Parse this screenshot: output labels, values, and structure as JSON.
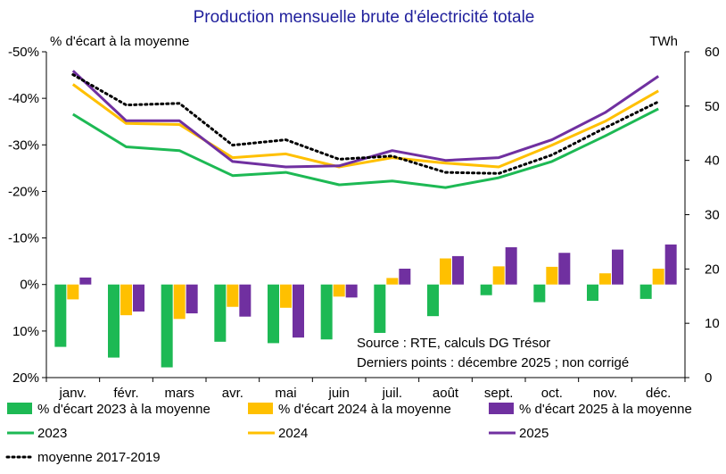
{
  "chart_data": {
    "type": "bar+line",
    "title": "Production mensuelle brute d'électricité totale",
    "ylabel_left": "% d'écart à la moyenne",
    "ylabel_right": "TWh",
    "categories": [
      "janv.",
      "févr.",
      "mars",
      "avr.",
      "mai",
      "juin",
      "juil.",
      "août",
      "sept.",
      "oct.",
      "nov.",
      "déc."
    ],
    "left_axis": {
      "ylim": [
        -50,
        20
      ],
      "inverted": true,
      "ticks": [
        -50,
        -40,
        -30,
        -20,
        -10,
        0,
        10,
        20
      ],
      "tick_labels": [
        "-50%",
        "-40%",
        "-30%",
        "-20%",
        "-10%",
        "0%",
        "10%",
        "20%"
      ]
    },
    "right_axis": {
      "ylim": [
        0,
        60
      ],
      "ticks": [
        0,
        10,
        20,
        30,
        40,
        50,
        60
      ],
      "tick_labels": [
        "0",
        "10",
        "20",
        "30",
        "40",
        "50",
        "60"
      ]
    },
    "bar_series": [
      {
        "name": "% d'écart 2023 à la moyenne",
        "color": "#1db954",
        "values": [
          13.4,
          15.7,
          17.8,
          12.3,
          12.6,
          11.8,
          10.4,
          6.8,
          2.3,
          3.8,
          3.5,
          3.1
        ]
      },
      {
        "name": "% d'écart 2024 à la moyenne",
        "color": "#ffc000",
        "values": [
          3.2,
          6.6,
          7.4,
          4.8,
          5.0,
          2.6,
          -1.4,
          -5.6,
          -3.9,
          -3.8,
          -2.4,
          -3.4
        ]
      },
      {
        "name": "% d'écart 2025 à la moyenne",
        "color": "#7030a0",
        "values": [
          -1.5,
          5.8,
          6.2,
          6.9,
          11.4,
          2.8,
          -3.4,
          -6.1,
          -8.0,
          -6.8,
          -7.5,
          -8.6
        ]
      }
    ],
    "line_series": [
      {
        "name": "2023",
        "color": "#1db954",
        "dash": "solid",
        "values": [
          48.5,
          42.5,
          41.8,
          37.2,
          37.8,
          35.5,
          36.2,
          35.0,
          36.8,
          39.8,
          44.5,
          49.5
        ]
      },
      {
        "name": "2024",
        "color": "#ffc000",
        "dash": "solid",
        "values": [
          54.0,
          46.8,
          46.6,
          40.5,
          41.2,
          38.8,
          40.5,
          39.5,
          38.8,
          42.8,
          47.2,
          52.8
        ]
      },
      {
        "name": "2025",
        "color": "#7030a0",
        "dash": "solid",
        "values": [
          56.5,
          47.3,
          47.3,
          39.8,
          38.8,
          39.0,
          41.8,
          40.0,
          40.5,
          43.8,
          48.8,
          55.5
        ]
      },
      {
        "name": "moyenne 2017-2019",
        "color": "#000000",
        "dash": "dotted",
        "values": [
          55.8,
          50.2,
          50.5,
          42.8,
          43.8,
          40.2,
          40.8,
          37.8,
          37.6,
          41.0,
          46.0,
          50.8
        ]
      }
    ],
    "legend": [
      {
        "label": "% d'écart 2023 à la moyenne",
        "kind": "bar",
        "color": "#1db954"
      },
      {
        "label": "% d'écart 2024 à la moyenne",
        "kind": "bar",
        "color": "#ffc000"
      },
      {
        "label": "% d'écart 2025 à la moyenne",
        "kind": "bar",
        "color": "#7030a0"
      },
      {
        "label": "2023",
        "kind": "line",
        "color": "#1db954"
      },
      {
        "label": "2024",
        "kind": "line",
        "color": "#ffc000"
      },
      {
        "label": "2025",
        "kind": "line",
        "color": "#7030a0"
      },
      {
        "label": "moyenne 2017-2019",
        "kind": "dotted",
        "color": "#000000"
      }
    ],
    "annotations": [
      "Source : RTE, calculs DG Trésor",
      "Derniers points : décembre 2025 ; non corrigé"
    ],
    "title_color": "#1f1f9c"
  }
}
